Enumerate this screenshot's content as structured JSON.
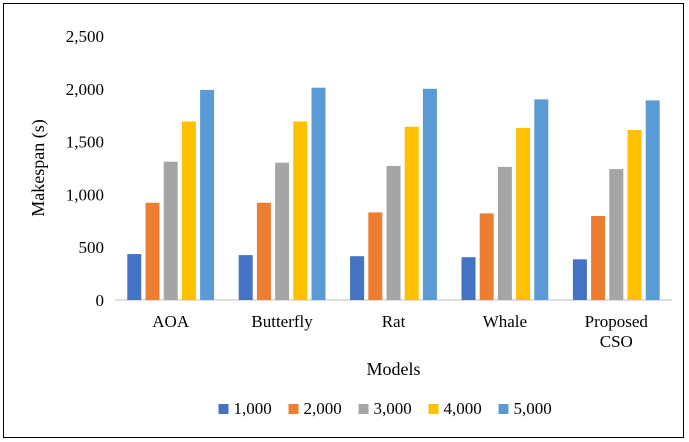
{
  "chart_data": {
    "type": "bar",
    "title": "",
    "xlabel": "Models",
    "ylabel": "Makespan (s)",
    "ylim": [
      0,
      2500
    ],
    "yticks": [
      0,
      500,
      1000,
      1500,
      2000,
      2500
    ],
    "ytick_labels": [
      "0",
      "500",
      "1,000",
      "1,500",
      "2,000",
      "2,500"
    ],
    "grid": false,
    "legend_position": "bottom",
    "categories": [
      "AOA",
      "Butterfly",
      "Rat",
      "Whale",
      "Proposed CSO"
    ],
    "series": [
      {
        "name": "1,000",
        "color": "#4472c4",
        "values": [
          435,
          425,
          415,
          405,
          385
        ]
      },
      {
        "name": "2,000",
        "color": "#ed7d31",
        "values": [
          920,
          920,
          830,
          820,
          795
        ]
      },
      {
        "name": "3,000",
        "color": "#a5a5a5",
        "values": [
          1310,
          1300,
          1270,
          1260,
          1240
        ]
      },
      {
        "name": "4,000",
        "color": "#ffc000",
        "values": [
          1690,
          1690,
          1640,
          1630,
          1610
        ]
      },
      {
        "name": "5,000",
        "color": "#5b9bd5",
        "values": [
          1990,
          2010,
          2000,
          1900,
          1890
        ]
      }
    ]
  }
}
